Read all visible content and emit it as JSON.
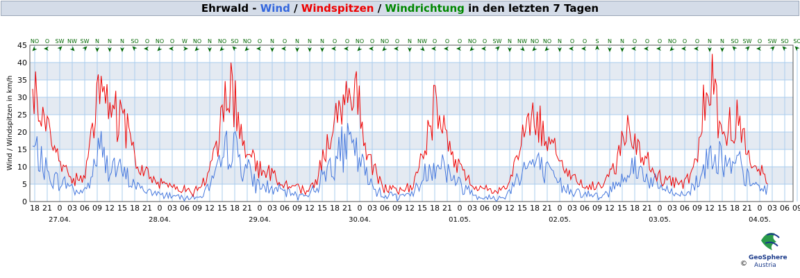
{
  "title": {
    "prefix": "Ehrwald - ",
    "wind": "Wind",
    "sep1": " / ",
    "gust": "Windspitzen",
    "sep2": " / ",
    "dir": "Windrichtung",
    "suffix": " in den letzten 7 Tagen"
  },
  "logo": {
    "brand": "GeoSphere",
    "brand2": "Austria",
    "copyright": "©"
  },
  "colors": {
    "wind": "#4477dd",
    "gust": "#ee0000",
    "dir": "#006600",
    "band": "#e4eaf2",
    "grid": "#aaccee"
  },
  "chart_data": {
    "type": "line",
    "ylabel": "Wind / Windspitzen in km/h",
    "ylim": [
      0,
      45
    ],
    "yticks": [
      0,
      5,
      10,
      15,
      20,
      25,
      30,
      35,
      40,
      45
    ],
    "xlim_hours": [
      -6.5,
      177
    ],
    "hour_tick_labels": [
      "18",
      "21",
      "0",
      "03",
      "06",
      "09",
      "12",
      "15",
      "18",
      "21",
      "0",
      "03",
      "06",
      "09",
      "12",
      "15",
      "18",
      "21",
      "0",
      "03",
      "06",
      "09",
      "12",
      "15",
      "18",
      "21",
      "0",
      "03",
      "06",
      "09",
      "12",
      "15",
      "18",
      "21",
      "0",
      "03",
      "06",
      "09",
      "12",
      "15",
      "18",
      "21",
      "0",
      "03",
      "06",
      "09",
      "12",
      "15",
      "18",
      "21",
      "0",
      "03",
      "06",
      "09",
      "12",
      "15",
      "18",
      "21",
      "0",
      "03",
      "06",
      "09"
    ],
    "date_labels": [
      "27.04.",
      "28.04.",
      "29.04.",
      "30.04.",
      "01.05.",
      "02.05.",
      "03.05.",
      "04.05."
    ],
    "wind_direction": [
      "NO",
      "O",
      "SW",
      "NW",
      "SW",
      "N",
      "N",
      "N",
      "SO",
      "O",
      "NO",
      "O",
      "W",
      "NO",
      "N",
      "NO",
      "SO",
      "NO",
      "O",
      "N",
      "O",
      "N",
      "N",
      "N",
      "O",
      "O",
      "NO",
      "O",
      "NO",
      "O",
      "N",
      "NW",
      "O",
      "O",
      "O",
      "NO",
      "O",
      "SW",
      "N",
      "NW",
      "NO",
      "NO",
      "N",
      "O",
      "O",
      "S",
      "N",
      "N",
      "O",
      "O",
      "O",
      "NO",
      "O",
      "O",
      "N",
      "N",
      "SO",
      "SW",
      "O",
      "SW",
      "SO",
      "SO"
    ],
    "series": [
      {
        "name": "Wind",
        "color": "#4477dd",
        "anchors": [
          [
            -6.5,
            15
          ],
          [
            -5,
            13
          ],
          [
            -3,
            8
          ],
          [
            -1,
            6
          ],
          [
            2,
            5
          ],
          [
            4,
            3
          ],
          [
            6,
            3
          ],
          [
            7,
            5
          ],
          [
            8,
            9
          ],
          [
            9,
            14
          ],
          [
            10,
            15
          ],
          [
            11,
            11
          ],
          [
            13,
            10
          ],
          [
            15,
            8
          ],
          [
            17,
            6
          ],
          [
            19,
            4
          ],
          [
            21,
            3
          ],
          [
            24,
            2
          ],
          [
            27,
            2
          ],
          [
            30,
            1.5
          ],
          [
            33,
            1
          ],
          [
            35,
            3
          ],
          [
            37,
            6
          ],
          [
            39,
            11
          ],
          [
            40,
            15
          ],
          [
            41,
            17
          ],
          [
            43,
            13
          ],
          [
            45,
            9
          ],
          [
            47,
            5
          ],
          [
            50,
            4
          ],
          [
            53,
            3
          ],
          [
            56,
            2
          ],
          [
            59,
            2
          ],
          [
            61,
            3
          ],
          [
            63,
            7
          ],
          [
            65,
            11
          ],
          [
            67,
            14
          ],
          [
            69,
            16
          ],
          [
            70,
            15
          ],
          [
            71,
            14
          ],
          [
            73,
            9
          ],
          [
            75,
            4
          ],
          [
            78,
            2
          ],
          [
            81,
            1.5
          ],
          [
            84,
            2
          ],
          [
            86,
            4
          ],
          [
            88,
            9
          ],
          [
            90,
            11
          ],
          [
            91,
            12
          ],
          [
            93,
            9
          ],
          [
            95,
            6
          ],
          [
            97,
            4
          ],
          [
            100,
            2
          ],
          [
            103,
            1
          ],
          [
            106,
            1
          ],
          [
            108,
            3
          ],
          [
            110,
            8
          ],
          [
            112,
            10
          ],
          [
            114,
            11
          ],
          [
            115,
            10
          ],
          [
            117,
            8
          ],
          [
            119,
            6
          ],
          [
            121,
            4
          ],
          [
            124,
            3
          ],
          [
            127,
            2
          ],
          [
            130,
            1
          ],
          [
            132,
            3
          ],
          [
            134,
            6
          ],
          [
            136,
            9
          ],
          [
            138,
            10
          ],
          [
            140,
            8
          ],
          [
            142,
            6
          ],
          [
            144,
            4
          ],
          [
            146,
            3
          ],
          [
            148,
            2
          ],
          [
            150,
            2
          ],
          [
            152,
            4
          ],
          [
            154,
            8
          ],
          [
            156,
            13
          ],
          [
            157,
            16
          ],
          [
            158,
            14
          ],
          [
            160,
            10
          ],
          [
            162,
            9
          ],
          [
            163,
            11
          ],
          [
            164,
            8
          ],
          [
            166,
            5
          ],
          [
            168,
            4
          ],
          [
            170,
            3.5
          ]
        ]
      },
      {
        "name": "Windspitzen",
        "color": "#ee0000",
        "anchors": [
          [
            -6.5,
            32
          ],
          [
            -5,
            28
          ],
          [
            -3,
            20
          ],
          [
            -1,
            12
          ],
          [
            2,
            8
          ],
          [
            4,
            6
          ],
          [
            6,
            8
          ],
          [
            7,
            12
          ],
          [
            8,
            20
          ],
          [
            9,
            28
          ],
          [
            10,
            33
          ],
          [
            11,
            30
          ],
          [
            12,
            26
          ],
          [
            14,
            24
          ],
          [
            16,
            20
          ],
          [
            18,
            13
          ],
          [
            20,
            9
          ],
          [
            23,
            6
          ],
          [
            26,
            5
          ],
          [
            29,
            4
          ],
          [
            32,
            2
          ],
          [
            34,
            5
          ],
          [
            36,
            9
          ],
          [
            38,
            16
          ],
          [
            39,
            25
          ],
          [
            40,
            32
          ],
          [
            41,
            34
          ],
          [
            42,
            28
          ],
          [
            44,
            20
          ],
          [
            46,
            12
          ],
          [
            48,
            9
          ],
          [
            51,
            8
          ],
          [
            54,
            5
          ],
          [
            57,
            4
          ],
          [
            59,
            3
          ],
          [
            61,
            4
          ],
          [
            63,
            12
          ],
          [
            65,
            20
          ],
          [
            67,
            26
          ],
          [
            69,
            31
          ],
          [
            70,
            34
          ],
          [
            71,
            30
          ],
          [
            73,
            20
          ],
          [
            75,
            10
          ],
          [
            78,
            4
          ],
          [
            81,
            3
          ],
          [
            84,
            4
          ],
          [
            86,
            8
          ],
          [
            88,
            17
          ],
          [
            89,
            23
          ],
          [
            90,
            27
          ],
          [
            91,
            25
          ],
          [
            93,
            19
          ],
          [
            95,
            13
          ],
          [
            97,
            8
          ],
          [
            100,
            4
          ],
          [
            103,
            3
          ],
          [
            106,
            3
          ],
          [
            108,
            6
          ],
          [
            110,
            14
          ],
          [
            112,
            21
          ],
          [
            113,
            24
          ],
          [
            114,
            25
          ],
          [
            115,
            23
          ],
          [
            117,
            20
          ],
          [
            119,
            14
          ],
          [
            121,
            10
          ],
          [
            124,
            6
          ],
          [
            127,
            5
          ],
          [
            130,
            4
          ],
          [
            132,
            7
          ],
          [
            134,
            14
          ],
          [
            136,
            20
          ],
          [
            137,
            22
          ],
          [
            138,
            19
          ],
          [
            140,
            13
          ],
          [
            142,
            10
          ],
          [
            144,
            7
          ],
          [
            146,
            6
          ],
          [
            148,
            5
          ],
          [
            150,
            5
          ],
          [
            152,
            8
          ],
          [
            154,
            20
          ],
          [
            155,
            33
          ],
          [
            156,
            38
          ],
          [
            157,
            31
          ],
          [
            158,
            24
          ],
          [
            160,
            18
          ],
          [
            161,
            23
          ],
          [
            162,
            25
          ],
          [
            163,
            21
          ],
          [
            165,
            14
          ],
          [
            167,
            10
          ],
          [
            169,
            8
          ],
          [
            170,
            6
          ]
        ]
      }
    ]
  }
}
